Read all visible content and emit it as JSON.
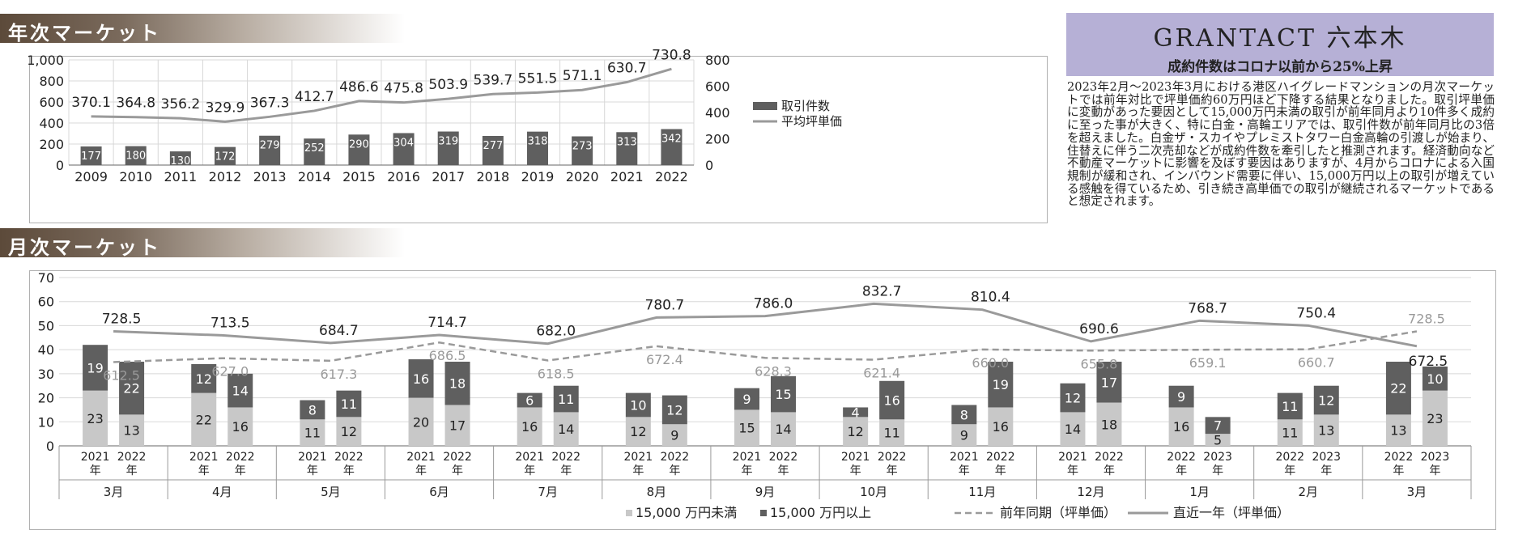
{
  "sections": {
    "annual_title": "年次マーケット",
    "monthly_title": "月次マーケット"
  },
  "side_panel": {
    "title": "GRANTACT 六本木",
    "subtitle": "成約件数はコロナ以前から25%上昇",
    "body": "2023年2月～2023年3月における港区ハイグレードマンションの月次マーケットでは前年対比で坪単価約60万円ほど下降する結果となりました。取引坪単価に変動があった要因として15,000万円未満の取引が前年同月より10件多く成約に至った事が大きく、特に白金・高輪エリアでは、取引件数が前年同月比の3倍を超えました。白金ザ・スカイやプレミストタワー白金高輪の引渡しが始まり、住替えに伴う二次売却などが成約件数を牽引したと推測されます。経済動向など不動産マーケットに影響を及ぼす要因はありますが、4月からコロナによる入国規制が緩和され、インバウンド需要に伴い、15,000万円以上の取引が増えている感触を得ているため、引き続き高単価での取引が継続されるマーケットであると想定されます。"
  },
  "colors": {
    "bar_dark": "#5f5f5f",
    "bar_light": "#c8c8c8",
    "line": "#9a9a9a",
    "grid": "#d8d8d8",
    "header_purple": "#b6b0d6",
    "band_brown": "#5c4a3a"
  },
  "chart_data": [
    {
      "type": "bar",
      "categories": [
        "2009",
        "2010",
        "2011",
        "2012",
        "2013",
        "2014",
        "2015",
        "2016",
        "2017",
        "2018",
        "2019",
        "2020",
        "2021",
        "2022"
      ],
      "series": [
        {
          "name": "取引件数",
          "axis": "left",
          "values": [
            177,
            180,
            130,
            172,
            279,
            252,
            290,
            304,
            319,
            277,
            318,
            273,
            313,
            342
          ]
        },
        {
          "name": "平均坪単価",
          "axis": "right",
          "kind": "line",
          "values": [
            370.1,
            364.8,
            356.2,
            329.9,
            367.3,
            412.7,
            486.6,
            475.8,
            503.9,
            539.7,
            551.5,
            571.1,
            630.7,
            730.8
          ]
        }
      ],
      "ylim_left": [
        0,
        1000
      ],
      "yticks_left": [
        "0",
        "200",
        "400",
        "600",
        "800",
        "1,000"
      ],
      "ylim_right": [
        0,
        800
      ],
      "yticks_right": [
        "0",
        "200",
        "400",
        "600",
        "800"
      ],
      "legend": [
        "取引件数",
        "平均坪単価"
      ],
      "legend_position": "right",
      "grid": true
    },
    {
      "type": "bar",
      "stacked": true,
      "months": [
        "3月",
        "4月",
        "5月",
        "6月",
        "7月",
        "8月",
        "9月",
        "10月",
        "11月",
        "12月",
        "1月",
        "2月",
        "3月"
      ],
      "pairs": [
        {
          "years": [
            "2021\n年",
            "2022\n年"
          ],
          "under": [
            23,
            13
          ],
          "over": [
            19,
            22
          ]
        },
        {
          "years": [
            "2021\n年",
            "2022\n年"
          ],
          "under": [
            22,
            16
          ],
          "over": [
            12,
            14
          ]
        },
        {
          "years": [
            "2021\n年",
            "2022\n年"
          ],
          "under": [
            11,
            12
          ],
          "over": [
            8,
            11
          ]
        },
        {
          "years": [
            "2021\n年",
            "2022\n年"
          ],
          "under": [
            20,
            17
          ],
          "over": [
            16,
            18
          ]
        },
        {
          "years": [
            "2021\n年",
            "2022\n年"
          ],
          "under": [
            16,
            14
          ],
          "over": [
            6,
            11
          ]
        },
        {
          "years": [
            "2021\n年",
            "2022\n年"
          ],
          "under": [
            12,
            9
          ],
          "over": [
            10,
            12
          ]
        },
        {
          "years": [
            "2021\n年",
            "2022\n年"
          ],
          "under": [
            15,
            14
          ],
          "over": [
            9,
            15
          ]
        },
        {
          "years": [
            "2021\n年",
            "2022\n年"
          ],
          "under": [
            12,
            11
          ],
          "over": [
            4,
            16
          ]
        },
        {
          "years": [
            "2021\n年",
            "2022\n年"
          ],
          "under": [
            9,
            16
          ],
          "over": [
            8,
            19
          ]
        },
        {
          "years": [
            "2021\n年",
            "2022\n年"
          ],
          "under": [
            14,
            18
          ],
          "over": [
            12,
            17
          ]
        },
        {
          "years": [
            "2022\n年",
            "2023\n年"
          ],
          "under": [
            16,
            5
          ],
          "over": [
            9,
            7
          ]
        },
        {
          "years": [
            "2022\n年",
            "2023\n年"
          ],
          "under": [
            11,
            13
          ],
          "over": [
            11,
            12
          ]
        },
        {
          "years": [
            "2022\n年",
            "2023\n年"
          ],
          "under": [
            13,
            23
          ],
          "over": [
            22,
            10
          ]
        }
      ],
      "line_recent": [
        728.5,
        713.5,
        684.7,
        714.7,
        682.0,
        780.7,
        786.0,
        832.7,
        810.4,
        690.6,
        768.7,
        750.4,
        672.5
      ],
      "line_prior": [
        612.5,
        627.0,
        617.3,
        686.5,
        618.5,
        672.4,
        628.3,
        621.4,
        660.0,
        655.8,
        659.1,
        660.7,
        728.5
      ],
      "ylim": [
        0,
        70
      ],
      "yticks": [
        "0",
        "10",
        "20",
        "30",
        "40",
        "50",
        "60",
        "70"
      ],
      "legend": {
        "under": "15,000 万円未満",
        "over": "15,000 万円以上",
        "prior": "前年同期（坪単価）",
        "recent": "直近一年（坪単価）"
      },
      "legend_position": "bottom",
      "grid": true
    }
  ]
}
